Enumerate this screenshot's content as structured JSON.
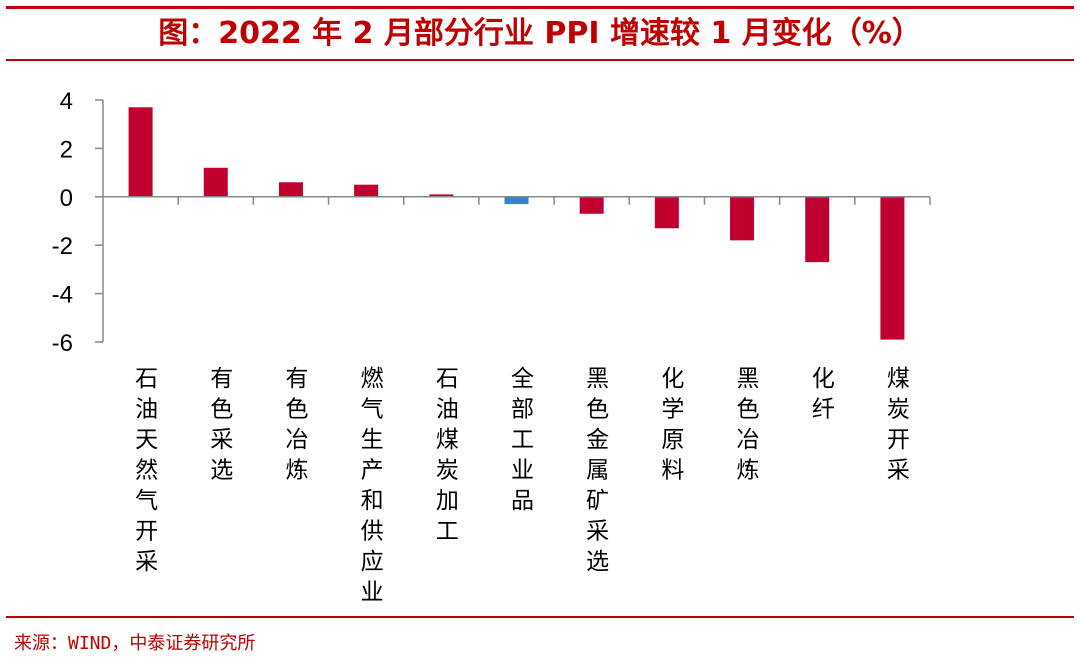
{
  "header": {
    "title": "图：2022 年 2 月部分行业 PPI 增速较 1 月变化（%）"
  },
  "footer": {
    "source": "来源：WIND，中泰证券研究所"
  },
  "colors": {
    "accent": "#c00000",
    "bar_positive": "#c0002f",
    "bar_highlight": "#2e86d1",
    "axis": "#888888"
  },
  "chart_data": {
    "type": "bar",
    "categories": [
      "石油天然气开采",
      "有色采选",
      "有色冶炼",
      "燃气生产和供应业",
      "石油煤炭加工",
      "全部工业品",
      "黑色金属矿采选",
      "化学原料",
      "黑色冶炼",
      "化纤",
      "煤炭开采"
    ],
    "values": [
      3.7,
      1.2,
      0.6,
      0.5,
      0.1,
      -0.3,
      -0.7,
      -1.3,
      -1.8,
      -2.7,
      -5.9
    ],
    "highlight_index": 5,
    "ylim": [
      -6,
      4
    ],
    "yticks": [
      4,
      2,
      0,
      -2,
      -4,
      -6
    ],
    "title": "",
    "xlabel": "",
    "ylabel": "",
    "grid": false,
    "legend": "none"
  }
}
